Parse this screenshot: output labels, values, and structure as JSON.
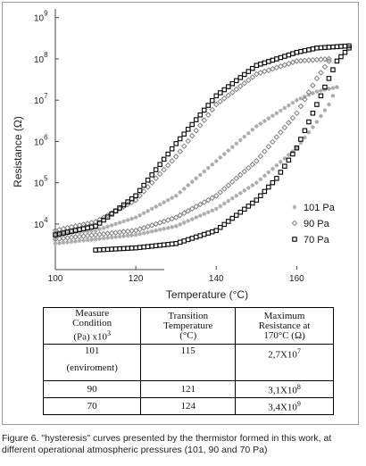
{
  "chart_data": {
    "type": "scatter",
    "xlabel": "Temperature (°C)",
    "ylabel": "Resistance (Ω)",
    "xlim": [
      100,
      175
    ],
    "ylim": [
      3.2,
      9.2
    ],
    "y_scale": "log",
    "x_ticks": [
      "100",
      "120",
      "140",
      "160"
    ],
    "x_tick_values": [
      100,
      120,
      140,
      160
    ],
    "y_ticks": [
      {
        "base": "10",
        "exp": "9",
        "value": 9
      },
      {
        "base": "10",
        "exp": "8",
        "value": 8.05
      },
      {
        "base": "10",
        "exp": "7",
        "value": 7.1
      },
      {
        "base": "10",
        "exp": "6",
        "value": 6.15
      },
      {
        "base": "10",
        "exp": "5",
        "value": 5.2
      },
      {
        "base": "10",
        "exp": "4",
        "value": 4.25
      }
    ],
    "legend_position": "right",
    "series": [
      {
        "name": "101 Pa",
        "marker": "asterisk",
        "color": "#a8a8a8",
        "heating": [
          [
            100,
            3.8
          ],
          [
            110,
            3.9
          ],
          [
            120,
            4.0
          ],
          [
            130,
            4.2
          ],
          [
            140,
            4.6
          ],
          [
            150,
            5.2
          ],
          [
            160,
            6.0
          ],
          [
            165,
            6.6
          ],
          [
            168,
            7.0
          ],
          [
            170,
            7.4
          ]
        ],
        "cooling": [
          [
            170,
            7.4
          ],
          [
            165,
            7.3
          ],
          [
            160,
            7.1
          ],
          [
            150,
            6.5
          ],
          [
            140,
            5.7
          ],
          [
            130,
            4.9
          ],
          [
            120,
            4.4
          ],
          [
            110,
            4.1
          ],
          [
            100,
            4.0
          ]
        ]
      },
      {
        "name": "90 Pa",
        "marker": "diamond",
        "color": "#808080",
        "heating": [
          [
            100,
            3.9
          ],
          [
            110,
            4.0
          ],
          [
            120,
            4.1
          ],
          [
            130,
            4.4
          ],
          [
            140,
            4.9
          ],
          [
            150,
            5.7
          ],
          [
            160,
            6.8
          ],
          [
            165,
            7.6
          ],
          [
            168,
            8.0
          ]
        ],
        "cooling": [
          [
            168,
            8.05
          ],
          [
            160,
            8.0
          ],
          [
            150,
            7.7
          ],
          [
            140,
            7.0
          ],
          [
            130,
            5.8
          ],
          [
            120,
            4.8
          ],
          [
            110,
            4.3
          ],
          [
            100,
            4.1
          ]
        ]
      },
      {
        "name": "70 Pa",
        "marker": "square",
        "color": "#000000",
        "heating": [
          [
            110,
            3.65
          ],
          [
            120,
            3.7
          ],
          [
            130,
            3.8
          ],
          [
            140,
            4.1
          ],
          [
            150,
            4.8
          ],
          [
            155,
            5.3
          ],
          [
            160,
            6.0
          ],
          [
            165,
            7.0
          ],
          [
            170,
            8.0
          ],
          [
            173,
            8.3
          ]
        ],
        "cooling": [
          [
            173,
            8.35
          ],
          [
            165,
            8.3
          ],
          [
            160,
            8.2
          ],
          [
            150,
            7.9
          ],
          [
            140,
            7.2
          ],
          [
            130,
            6.1
          ],
          [
            120,
            4.9
          ],
          [
            110,
            4.2
          ],
          [
            100,
            4.0
          ]
        ]
      }
    ]
  },
  "table": {
    "headers": [
      {
        "l1": "Measure",
        "l2": "Condition",
        "l3": "(Pa) x10",
        "l3_exp": "3"
      },
      {
        "l1": "Transition",
        "l2": "Temperature",
        "l3": "(°C)",
        "l3_exp": ""
      },
      {
        "l1": "Maximum",
        "l2": "Resistance at",
        "l3": "170°C (Ω)",
        "l3_exp": ""
      }
    ],
    "rows": [
      {
        "condition": "101",
        "condition_note": "(enviroment)",
        "temperature": "115",
        "resistance": "2,7X10",
        "resistance_exp": "7"
      },
      {
        "condition": "90",
        "condition_note": "",
        "temperature": "121",
        "resistance": "3,1X10",
        "resistance_exp": "8"
      },
      {
        "condition": "70",
        "condition_note": "",
        "temperature": "124",
        "resistance": "3,4X10",
        "resistance_exp": "9"
      }
    ]
  },
  "caption": "Figure 6. \"hysteresis\" curves presented by the thermistor formed in this work, at different operational atmospheric pressures (101, 90 and 70 Pa)"
}
